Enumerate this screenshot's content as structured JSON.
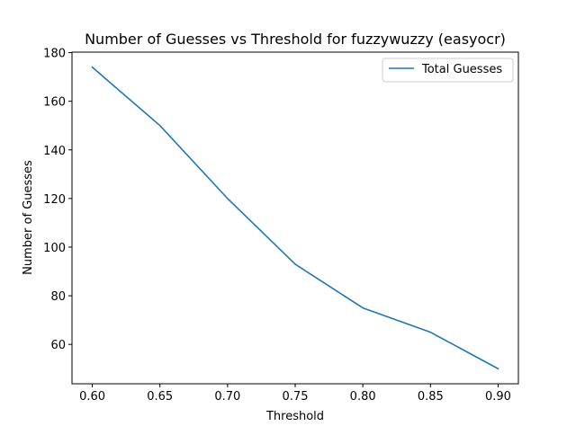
{
  "chart_data": {
    "type": "line",
    "title": "Number of Guesses vs Threshold for fuzzywuzzy (easyocr)",
    "xlabel": "Threshold",
    "ylabel": "Number of Guesses",
    "x": [
      0.6,
      0.65,
      0.7,
      0.75,
      0.8,
      0.85,
      0.9
    ],
    "xticks": [
      0.6,
      0.65,
      0.7,
      0.75,
      0.8,
      0.85,
      0.9
    ],
    "xtick_labels": [
      "0.60",
      "0.65",
      "0.70",
      "0.75",
      "0.80",
      "0.85",
      "0.90"
    ],
    "yticks": [
      60,
      80,
      100,
      120,
      140,
      160,
      180
    ],
    "ytick_labels": [
      "60",
      "80",
      "100",
      "120",
      "140",
      "160",
      "180"
    ],
    "xlim": [
      0.585,
      0.915
    ],
    "ylim": [
      43.8,
      180.2
    ],
    "grid": false,
    "legend_position": "top-right",
    "series": [
      {
        "name": "Total Guesses",
        "color": "#1f77b4",
        "values": [
          174,
          150,
          120,
          93,
          75,
          65,
          50
        ]
      }
    ]
  }
}
